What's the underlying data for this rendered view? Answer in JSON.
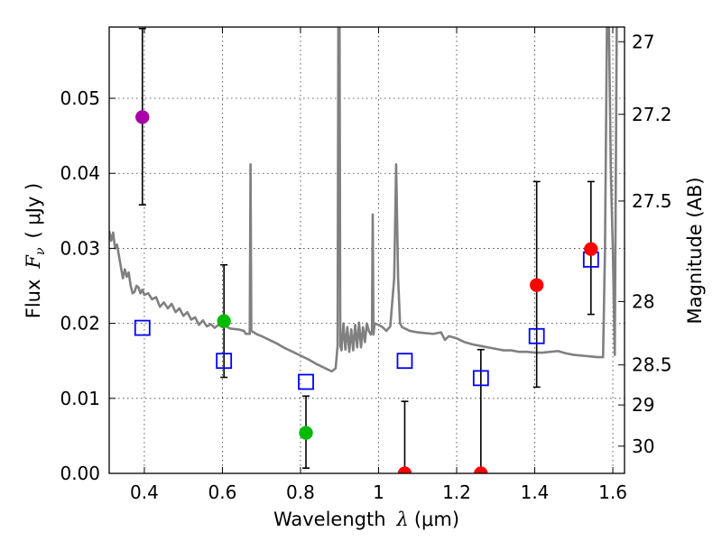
{
  "chart_data": {
    "type": "scatter",
    "title": "",
    "xlabel": "Wavelength",
    "xlabel_symbol": "λ",
    "xlabel_unit": "(μm)",
    "ylabel": "Flux",
    "ylabel_symbol": "F",
    "ylabel_subscript": "ν",
    "ylabel_unit": "( μJy )",
    "y2label": "Magnitude (AB)",
    "xlim": [
      0.31,
      1.63
    ],
    "ylim": [
      0.0,
      0.0595
    ],
    "grid": true,
    "x_ticks": [
      0.4,
      0.6,
      0.8,
      1.0,
      1.2,
      1.4,
      1.6
    ],
    "x_tick_labels": [
      "0.4",
      "0.6",
      "0.8",
      "1",
      "1.2",
      "1.4",
      "1.6"
    ],
    "y_ticks": [
      0.0,
      0.01,
      0.02,
      0.03,
      0.04,
      0.05
    ],
    "y_tick_labels": [
      "0.00",
      "0.01",
      "0.02",
      "0.03",
      "0.04",
      "0.05"
    ],
    "mag_ticks": [
      {
        "label": "27",
        "mag": 27.0
      },
      {
        "label": "27.2",
        "mag": 27.2
      },
      {
        "label": "27.5",
        "mag": 27.5
      },
      {
        "label": "28",
        "mag": 28.0
      },
      {
        "label": "28.5",
        "mag": 28.5
      },
      {
        "label": "29",
        "mag": 29.0
      },
      {
        "label": "30",
        "mag": 30.0
      }
    ],
    "colors": {
      "model": "#808080",
      "template": "#0000ff",
      "purple": "#aa00aa",
      "green": "#00bb00",
      "red": "#ff0000",
      "errorbar": "#000000"
    },
    "observed_points": [
      {
        "x": 0.395,
        "y": 0.0475,
        "yerr_low": 0.0358,
        "yerr_high": 0.0593,
        "color": "purple"
      },
      {
        "x": 0.604,
        "y": 0.0203,
        "yerr_low": 0.0128,
        "yerr_high": 0.0278,
        "color": "green"
      },
      {
        "x": 0.814,
        "y": 0.0054,
        "yerr_low": 0.0007,
        "yerr_high": 0.0103,
        "color": "green"
      },
      {
        "x": 1.067,
        "y": 0.0,
        "yerr_low": 0.0,
        "yerr_high": 0.0096,
        "color": "red"
      },
      {
        "x": 1.262,
        "y": 0.0,
        "yerr_low": 0.0,
        "yerr_high": 0.0165,
        "color": "red"
      },
      {
        "x": 1.405,
        "y": 0.0251,
        "yerr_low": 0.0115,
        "yerr_high": 0.0389,
        "color": "red"
      },
      {
        "x": 1.544,
        "y": 0.0299,
        "yerr_low": 0.0212,
        "yerr_high": 0.0389,
        "color": "red"
      }
    ],
    "model_photometry": [
      {
        "x": 0.395,
        "y": 0.0194
      },
      {
        "x": 0.604,
        "y": 0.015
      },
      {
        "x": 0.814,
        "y": 0.0122
      },
      {
        "x": 1.067,
        "y": 0.015
      },
      {
        "x": 1.262,
        "y": 0.0127
      },
      {
        "x": 1.405,
        "y": 0.0183
      },
      {
        "x": 1.544,
        "y": 0.0285
      }
    ],
    "model_spectrum": [
      [
        0.31,
        0.0323
      ],
      [
        0.315,
        0.031
      ],
      [
        0.32,
        0.0321
      ],
      [
        0.325,
        0.03
      ],
      [
        0.33,
        0.0305
      ],
      [
        0.335,
        0.029
      ],
      [
        0.34,
        0.0275
      ],
      [
        0.345,
        0.026
      ],
      [
        0.35,
        0.0272
      ],
      [
        0.355,
        0.0262
      ],
      [
        0.36,
        0.0268
      ],
      [
        0.365,
        0.025
      ],
      [
        0.37,
        0.024
      ],
      [
        0.375,
        0.0242
      ],
      [
        0.38,
        0.025
      ],
      [
        0.385,
        0.0248
      ],
      [
        0.39,
        0.024
      ],
      [
        0.395,
        0.0245
      ],
      [
        0.4,
        0.0238
      ],
      [
        0.41,
        0.024
      ],
      [
        0.42,
        0.0232
      ],
      [
        0.43,
        0.0235
      ],
      [
        0.44,
        0.0222
      ],
      [
        0.45,
        0.0228
      ],
      [
        0.46,
        0.022
      ],
      [
        0.47,
        0.0226
      ],
      [
        0.48,
        0.0215
      ],
      [
        0.49,
        0.022
      ],
      [
        0.5,
        0.021
      ],
      [
        0.51,
        0.0215
      ],
      [
        0.52,
        0.0205
      ],
      [
        0.53,
        0.0208
      ],
      [
        0.54,
        0.0198
      ],
      [
        0.55,
        0.0204
      ],
      [
        0.56,
        0.0196
      ],
      [
        0.57,
        0.0199
      ],
      [
        0.58,
        0.0194
      ],
      [
        0.59,
        0.0198
      ],
      [
        0.6,
        0.0195
      ],
      [
        0.61,
        0.0196
      ],
      [
        0.62,
        0.0193
      ],
      [
        0.64,
        0.0192
      ],
      [
        0.655,
        0.019
      ],
      [
        0.66,
        0.0186
      ],
      [
        0.67,
        0.0186
      ],
      [
        0.672,
        0.0412
      ],
      [
        0.674,
        0.019
      ],
      [
        0.69,
        0.0185
      ],
      [
        0.7,
        0.0183
      ],
      [
        0.72,
        0.0178
      ],
      [
        0.74,
        0.0173
      ],
      [
        0.76,
        0.0167
      ],
      [
        0.78,
        0.0162
      ],
      [
        0.8,
        0.0157
      ],
      [
        0.82,
        0.0152
      ],
      [
        0.84,
        0.0146
      ],
      [
        0.86,
        0.0141
      ],
      [
        0.88,
        0.0136
      ],
      [
        0.89,
        0.014
      ],
      [
        0.895,
        0.017
      ],
      [
        0.897,
        0.06
      ],
      [
        0.9,
        0.06
      ],
      [
        0.902,
        0.017
      ],
      [
        0.905,
        0.0164
      ],
      [
        0.91,
        0.02
      ],
      [
        0.915,
        0.0165
      ],
      [
        0.92,
        0.0195
      ],
      [
        0.925,
        0.0162
      ],
      [
        0.93,
        0.0192
      ],
      [
        0.935,
        0.0164
      ],
      [
        0.94,
        0.0198
      ],
      [
        0.945,
        0.0168
      ],
      [
        0.95,
        0.0201
      ],
      [
        0.955,
        0.0168
      ],
      [
        0.96,
        0.0195
      ],
      [
        0.965,
        0.0175
      ],
      [
        0.97,
        0.02
      ],
      [
        0.975,
        0.019
      ],
      [
        0.98,
        0.0185
      ],
      [
        0.983,
        0.019
      ],
      [
        0.985,
        0.0345
      ],
      [
        0.987,
        0.0185
      ],
      [
        0.99,
        0.02
      ],
      [
        1.0,
        0.0198
      ],
      [
        1.01,
        0.0195
      ],
      [
        1.02,
        0.019
      ],
      [
        1.03,
        0.0196
      ],
      [
        1.04,
        0.026
      ],
      [
        1.045,
        0.0412
      ],
      [
        1.05,
        0.026
      ],
      [
        1.055,
        0.02
      ],
      [
        1.06,
        0.0195
      ],
      [
        1.08,
        0.019
      ],
      [
        1.1,
        0.0188
      ],
      [
        1.12,
        0.0187
      ],
      [
        1.14,
        0.0186
      ],
      [
        1.16,
        0.0188
      ],
      [
        1.17,
        0.0178
      ],
      [
        1.18,
        0.0183
      ],
      [
        1.2,
        0.018
      ],
      [
        1.22,
        0.0175
      ],
      [
        1.24,
        0.0172
      ],
      [
        1.26,
        0.017
      ],
      [
        1.28,
        0.0168
      ],
      [
        1.3,
        0.0166
      ],
      [
        1.32,
        0.0164
      ],
      [
        1.34,
        0.0164
      ],
      [
        1.36,
        0.0162
      ],
      [
        1.38,
        0.0162
      ],
      [
        1.4,
        0.0161
      ],
      [
        1.42,
        0.0161
      ],
      [
        1.44,
        0.0162
      ],
      [
        1.46,
        0.0163
      ],
      [
        1.48,
        0.016
      ],
      [
        1.5,
        0.0158
      ],
      [
        1.52,
        0.0157
      ],
      [
        1.54,
        0.0156
      ],
      [
        1.56,
        0.0155
      ],
      [
        1.575,
        0.0155
      ],
      [
        1.58,
        0.03
      ],
      [
        1.585,
        0.06
      ],
      [
        1.59,
        0.06
      ],
      [
        1.595,
        0.04
      ],
      [
        1.6,
        0.03
      ],
      [
        1.605,
        0.0158
      ],
      [
        1.61,
        0.06
      ],
      [
        1.63,
        0.06
      ]
    ]
  }
}
